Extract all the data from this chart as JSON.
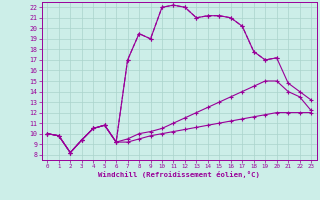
{
  "xlabel": "Windchill (Refroidissement éolien,°C)",
  "bg_color": "#cceee8",
  "grid_color": "#aad4cc",
  "line_color": "#990099",
  "xlim": [
    -0.5,
    23.5
  ],
  "ylim": [
    7.5,
    22.5
  ],
  "xticks": [
    0,
    1,
    2,
    3,
    4,
    5,
    6,
    7,
    8,
    9,
    10,
    11,
    12,
    13,
    14,
    15,
    16,
    17,
    18,
    19,
    20,
    21,
    22,
    23
  ],
  "yticks": [
    8,
    9,
    10,
    11,
    12,
    13,
    14,
    15,
    16,
    17,
    18,
    19,
    20,
    21,
    22
  ],
  "series": [
    {
      "x": [
        0,
        1,
        2,
        3,
        4,
        5,
        6,
        7,
        8,
        9,
        10,
        11,
        12,
        13,
        14,
        15,
        16,
        17,
        18,
        19,
        20,
        21,
        22,
        23
      ],
      "y": [
        10,
        9.8,
        8.2,
        9.4,
        10.5,
        10.8,
        9.2,
        9.2,
        9.5,
        9.8,
        10,
        10.2,
        10.4,
        10.6,
        10.8,
        11,
        11.2,
        11.4,
        11.6,
        11.8,
        12,
        12,
        12,
        12
      ]
    },
    {
      "x": [
        0,
        1,
        2,
        3,
        4,
        5,
        6,
        7,
        8,
        9,
        10,
        11,
        12,
        13,
        14,
        15,
        16,
        17,
        18,
        19,
        20,
        21,
        22,
        23
      ],
      "y": [
        10,
        9.8,
        8.2,
        9.4,
        10.5,
        10.8,
        9.2,
        9.5,
        10,
        10.2,
        10.5,
        11,
        11.5,
        12,
        12.5,
        13,
        13.5,
        14,
        14.5,
        15,
        15,
        14,
        13.5,
        12.2
      ]
    },
    {
      "x": [
        0,
        1,
        2,
        3,
        4,
        5,
        6,
        7,
        8,
        9,
        10,
        11,
        12,
        13,
        14,
        15,
        16,
        17,
        18,
        19,
        20
      ],
      "y": [
        10,
        9.8,
        8.2,
        9.4,
        10.5,
        10.8,
        9.2,
        17,
        19.5,
        19,
        22,
        22.2,
        22,
        21,
        21.2,
        21.2,
        21,
        20.2,
        17.8,
        17,
        17.2
      ],
      "dashed": true
    },
    {
      "x": [
        0,
        1,
        2,
        3,
        4,
        5,
        6,
        7,
        8,
        9,
        10,
        11,
        12,
        13,
        14,
        15,
        16,
        17,
        18,
        19,
        20,
        21,
        22,
        23
      ],
      "y": [
        10,
        9.8,
        8.2,
        9.4,
        10.5,
        10.8,
        9.2,
        17,
        19.5,
        19,
        22,
        22.2,
        22,
        21,
        21.2,
        21.2,
        21,
        20.2,
        17.8,
        17,
        17.2,
        14.8,
        14,
        13.2
      ],
      "dashed": false
    }
  ]
}
